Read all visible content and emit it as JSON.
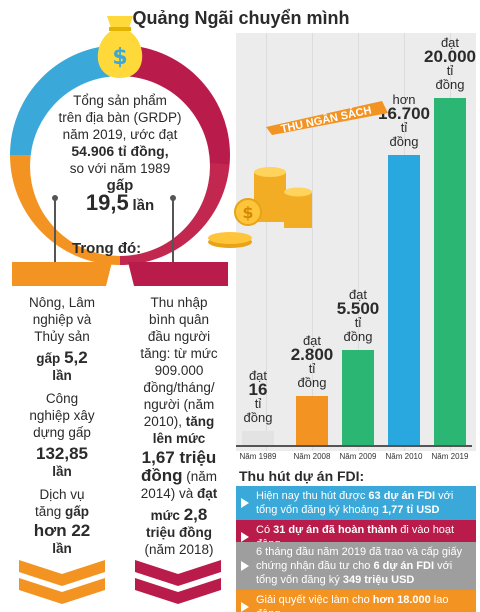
{
  "title": "Quảng Ngãi chuyển mình",
  "grdp": {
    "line1": "Tổng sản phẩm",
    "line2": "trên địa bàn (GRDP)",
    "line3": "năm 2019, ước đạt",
    "value": "54.906 tỉ đồng,",
    "line5": "so với năm 1989",
    "gap_word": "gấp",
    "multiple": "19,5",
    "unit": "lần"
  },
  "subheading": "Trong đó:",
  "left_column": {
    "sector1": [
      "Nông, Lâm",
      "nghiệp và",
      "Thủy sản"
    ],
    "sector1_value_pre": "gấp",
    "sector1_value": "5,2",
    "sector1_unit": "lần",
    "sector2": [
      "Công",
      "nghiệp xây",
      "dựng gấp"
    ],
    "sector2_value": "132,85",
    "sector2_unit": "lần",
    "sector3_pre": "Dịch vụ",
    "sector3_mid": "tăng",
    "sector3_word": "gấp",
    "sector3_value": "hơn 22",
    "sector3_unit": "lần"
  },
  "right_column": {
    "lines": [
      "Thu nhập",
      "bình quân",
      "đầu người",
      "tăng: từ mức",
      "909.000",
      "đồng/tháng/",
      "người (năm"
    ],
    "line8_pre": "2010),",
    "line8_bold": "tăng",
    "line9": "lên mức",
    "value1": "1,67 triệu",
    "value1_b": "đồng",
    "value1_tail": "(năm",
    "line12_pre": "2014) và",
    "line12_bold": "đạt",
    "value2_pre": "mức",
    "value2": "2,8",
    "value2_b": "triệu đồng",
    "tail": "(năm 2018)"
  },
  "banner_text": "THU NGÂN SÁCH",
  "chart_data": {
    "type": "bar",
    "title": "THU NGÂN SÁCH",
    "categories": [
      "Năm 1989",
      "Năm 2008",
      "Năm 2009",
      "Năm 2010",
      "Năm 2019"
    ],
    "values": [
      16,
      2800,
      5500,
      16700,
      20000
    ],
    "labels": [
      {
        "pre": "đạt",
        "num": "16",
        "unit": "tỉ",
        "unit2": "đồng"
      },
      {
        "pre": "đạt",
        "num": "2.800",
        "unit": "tỉ",
        "unit2": "đồng"
      },
      {
        "pre": "đạt",
        "num": "5.500",
        "unit": "tỉ",
        "unit2": "đồng"
      },
      {
        "pre": "hơn",
        "num": "16.700",
        "unit": "tỉ",
        "unit2": "đồng"
      },
      {
        "pre": "đạt",
        "num": "20.000",
        "unit": "tỉ",
        "unit2": "đồng"
      }
    ],
    "colors": [
      "#e3e3e3",
      "#f39322",
      "#2bb673",
      "#29a8df",
      "#2bb673"
    ],
    "ylim": [
      0,
      20000
    ]
  },
  "fdi": {
    "title": "Thu hút dự án FDI:",
    "items": [
      {
        "pre": "Hiện nay thu hút được",
        "b1": "63 dự án FDI",
        "mid": "với tổng vốn đăng ký khoảng",
        "b2": "1,77 tỉ USD",
        "post": "",
        "color": "#3aa8d8"
      },
      {
        "pre": "Có",
        "b1": "31 dự án đã hoàn thành",
        "mid": "đi vào hoạt động",
        "b2": "",
        "post": "",
        "color": "#b91c4a"
      },
      {
        "pre": "6 tháng đầu năm 2019 đã trao và cấp giấy chứng nhận đầu tư cho",
        "b1": "6 dự án FDI",
        "mid": "với tổng vốn đăng ký",
        "b2": "349 triệu USD",
        "post": "",
        "color": "#9e9e9e"
      },
      {
        "pre": "Giải quyết việc làm cho",
        "b1": "hơn 18.000",
        "mid": "lao động",
        "b2": "",
        "post": "",
        "color": "#f39322"
      }
    ]
  }
}
